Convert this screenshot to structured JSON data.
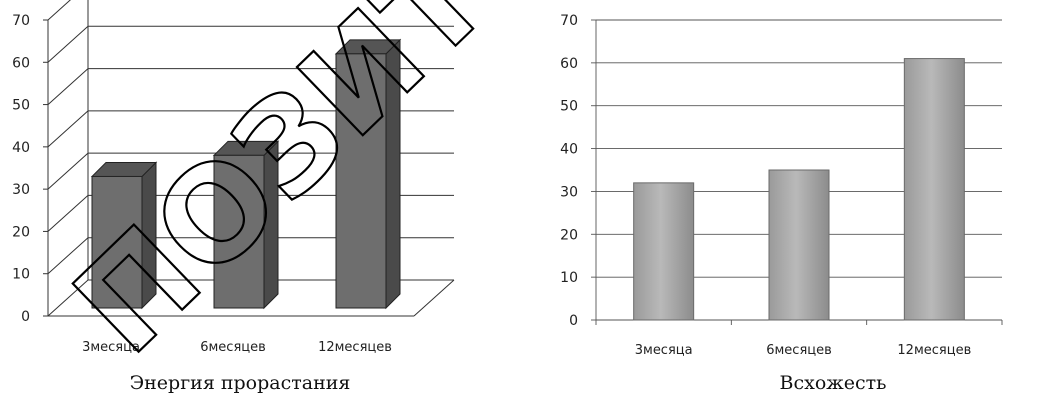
{
  "chart_data": [
    {
      "type": "bar",
      "style": "3d",
      "title": "Энергия прорастания",
      "categories": [
        "3месяца",
        "6месяцев",
        "12месяцев"
      ],
      "values": [
        33,
        38,
        62
      ],
      "ylim": [
        0,
        70
      ],
      "yticks": [
        "0",
        "10",
        "20",
        "30",
        "40",
        "50",
        "60",
        "70"
      ],
      "grid": true,
      "bar_color": "#6e6e6e"
    },
    {
      "type": "bar",
      "style": "flat",
      "title": "Всхожесть",
      "categories": [
        "3месяца",
        "6месяцев",
        "12месяцев"
      ],
      "values": [
        32,
        35,
        61
      ],
      "ylim": [
        0,
        70
      ],
      "yticks": [
        "0",
        "10",
        "20",
        "30",
        "40",
        "50",
        "60",
        "70"
      ],
      "grid": true,
      "bar_color": "#a8a8a8"
    }
  ],
  "watermark": "ПОЗИТОР"
}
